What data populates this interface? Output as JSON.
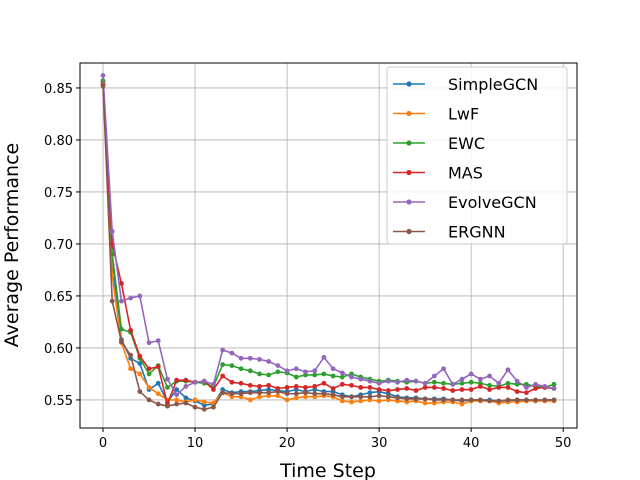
{
  "chart_data": {
    "type": "line",
    "title": "",
    "xlabel": "Time Step",
    "ylabel": "Average Performance",
    "xlim": [
      -2.5,
      51.5
    ],
    "ylim": [
      0.523,
      0.874
    ],
    "xticks": [
      0,
      10,
      20,
      30,
      40,
      50
    ],
    "yticks": [
      0.55,
      0.6,
      0.65,
      0.7,
      0.75,
      0.8,
      0.85
    ],
    "ytick_labels": [
      "0.55",
      "0.60",
      "0.65",
      "0.70",
      "0.75",
      "0.80",
      "0.85"
    ],
    "grid": true,
    "legend_position": "top-right",
    "x": [
      0,
      1,
      2,
      3,
      4,
      5,
      6,
      7,
      8,
      9,
      10,
      11,
      12,
      13,
      14,
      15,
      16,
      17,
      18,
      19,
      20,
      21,
      22,
      23,
      24,
      25,
      26,
      27,
      28,
      29,
      30,
      31,
      32,
      33,
      34,
      35,
      36,
      37,
      38,
      39,
      40,
      41,
      42,
      43,
      44,
      45,
      46,
      47,
      48,
      49
    ],
    "series": [
      {
        "name": "SimpleGCN",
        "color": "#1f77b4",
        "values": [
          0.855,
          0.68,
          0.608,
          0.59,
          0.585,
          0.56,
          0.566,
          0.548,
          0.56,
          0.552,
          0.549,
          0.545,
          0.546,
          0.56,
          0.557,
          0.558,
          0.558,
          0.559,
          0.56,
          0.559,
          0.558,
          0.56,
          0.558,
          0.56,
          0.558,
          0.558,
          0.555,
          0.553,
          0.555,
          0.557,
          0.558,
          0.556,
          0.553,
          0.552,
          0.552,
          0.551,
          0.551,
          0.551,
          0.55,
          0.549,
          0.55,
          0.55,
          0.55,
          0.549,
          0.549,
          0.55,
          0.55,
          0.549,
          0.55,
          0.55
        ]
      },
      {
        "name": "LwF",
        "color": "#ff7f0e",
        "values": [
          0.855,
          0.67,
          0.605,
          0.58,
          0.575,
          0.562,
          0.556,
          0.55,
          0.55,
          0.548,
          0.55,
          0.548,
          0.547,
          0.557,
          0.553,
          0.553,
          0.55,
          0.553,
          0.554,
          0.554,
          0.55,
          0.552,
          0.553,
          0.553,
          0.554,
          0.553,
          0.549,
          0.548,
          0.549,
          0.55,
          0.549,
          0.55,
          0.549,
          0.548,
          0.549,
          0.547,
          0.547,
          0.548,
          0.548,
          0.546,
          0.549,
          0.549,
          0.549,
          0.547,
          0.548,
          0.548,
          0.549,
          0.549,
          0.549,
          0.549
        ]
      },
      {
        "name": "EWC",
        "color": "#2ca02c",
        "values": [
          0.857,
          0.69,
          0.618,
          0.615,
          0.59,
          0.575,
          0.583,
          0.562,
          0.568,
          0.568,
          0.567,
          0.566,
          0.563,
          0.584,
          0.583,
          0.58,
          0.578,
          0.575,
          0.574,
          0.577,
          0.576,
          0.572,
          0.574,
          0.574,
          0.575,
          0.573,
          0.572,
          0.575,
          0.572,
          0.57,
          0.568,
          0.569,
          0.568,
          0.567,
          0.568,
          0.566,
          0.567,
          0.566,
          0.565,
          0.566,
          0.567,
          0.566,
          0.564,
          0.563,
          0.566,
          0.565,
          0.565,
          0.563,
          0.562,
          0.565
        ]
      },
      {
        "name": "MAS",
        "color": "#d62728",
        "values": [
          0.853,
          0.7,
          0.662,
          0.617,
          0.592,
          0.58,
          0.582,
          0.546,
          0.569,
          0.569,
          0.567,
          0.568,
          0.56,
          0.573,
          0.567,
          0.566,
          0.564,
          0.563,
          0.564,
          0.561,
          0.562,
          0.563,
          0.562,
          0.563,
          0.566,
          0.561,
          0.565,
          0.564,
          0.562,
          0.562,
          0.56,
          0.559,
          0.56,
          0.561,
          0.559,
          0.562,
          0.562,
          0.561,
          0.559,
          0.56,
          0.56,
          0.563,
          0.56,
          0.562,
          0.562,
          0.558,
          0.557,
          0.561,
          0.562,
          0.561
        ]
      },
      {
        "name": "EvolveGCN",
        "color": "#9467bd",
        "values": [
          0.862,
          0.712,
          0.645,
          0.648,
          0.65,
          0.605,
          0.607,
          0.57,
          0.555,
          0.563,
          0.567,
          0.568,
          0.565,
          0.598,
          0.595,
          0.59,
          0.59,
          0.589,
          0.587,
          0.583,
          0.578,
          0.58,
          0.577,
          0.578,
          0.591,
          0.58,
          0.576,
          0.572,
          0.57,
          0.568,
          0.566,
          0.568,
          0.567,
          0.569,
          0.568,
          0.566,
          0.573,
          0.58,
          0.565,
          0.57,
          0.575,
          0.57,
          0.573,
          0.566,
          0.579,
          0.568,
          0.562,
          0.565,
          0.563,
          0.561
        ]
      },
      {
        "name": "ERGNN",
        "color": "#8c564b",
        "values": [
          0.852,
          0.645,
          0.606,
          0.593,
          0.558,
          0.55,
          0.546,
          0.544,
          0.546,
          0.547,
          0.543,
          0.541,
          0.543,
          0.557,
          0.556,
          0.556,
          0.557,
          0.557,
          0.557,
          0.558,
          0.556,
          0.556,
          0.557,
          0.556,
          0.556,
          0.555,
          0.553,
          0.553,
          0.553,
          0.553,
          0.554,
          0.553,
          0.552,
          0.551,
          0.551,
          0.551,
          0.55,
          0.55,
          0.55,
          0.55,
          0.55,
          0.55,
          0.549,
          0.549,
          0.55,
          0.55,
          0.55,
          0.55,
          0.55,
          0.55
        ]
      }
    ]
  }
}
